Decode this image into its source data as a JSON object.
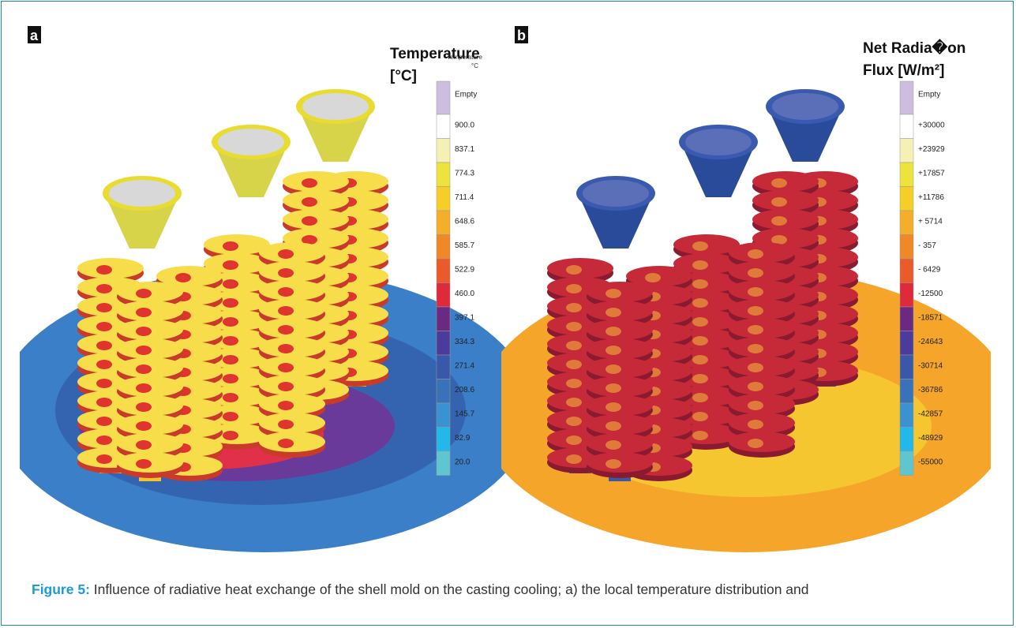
{
  "panels": [
    {
      "label": "a",
      "legend_title": [
        "Temperature",
        "[°C]"
      ],
      "legend_inset": [
        "Temperature",
        "°C"
      ],
      "colorbar": [
        "Empty",
        "900.0",
        "837.1",
        "774.3",
        "711.4",
        "648.6",
        "585.7",
        "522.9",
        "460.0",
        "397.1",
        "334.3",
        "271.4",
        "208.6",
        "145.7",
        "82.9",
        "20.0"
      ]
    },
    {
      "label": "b",
      "legend_title": [
        "Net Radia�on",
        "Flux [W/m²]"
      ],
      "colorbar": [
        "Empty",
        "+30000",
        "+23929",
        "+17857",
        "+11786",
        "+ 5714",
        "-  357",
        "- 6429",
        "-12500",
        "-18571",
        "-24643",
        "-30714",
        "-36786",
        "-42857",
        "-48929",
        "-55000"
      ]
    }
  ],
  "colorbar_colors": [
    "#cdbde0",
    "#ffffff",
    "#f5f1b4",
    "#ece43c",
    "#f6cf26",
    "#f4ae2a",
    "#f08827",
    "#eb5a2b",
    "#df2a3b",
    "#6b2a82",
    "#4b3c9c",
    "#3a58a8",
    "#3a72ba",
    "#3a92d2",
    "#22b9ea",
    "#5fc6d0"
  ],
  "caption": {
    "label": "Figure 5:",
    "text": "Influence of radiative heat exchange of the shell mold on the casting cooling; a) the local temperature distribution and"
  }
}
